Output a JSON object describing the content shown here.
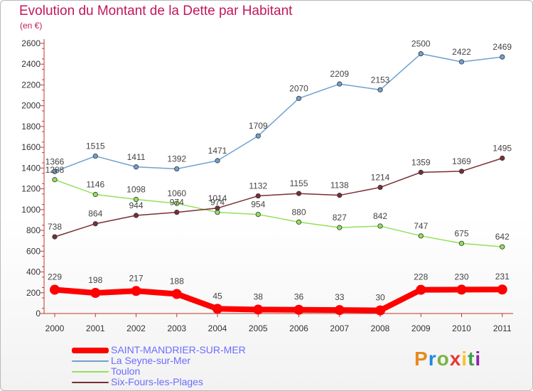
{
  "title": "Evolution du Montant de la Dette par Habitant",
  "subtitle": "(en €)",
  "logo_text": "Proxiti",
  "chart_data": {
    "type": "line",
    "title": "Evolution du Montant de la Dette par Habitant",
    "ylabel": "(en €)",
    "xlabel": "",
    "ylim": [
      0,
      2600
    ],
    "yticks": [
      0,
      200,
      400,
      600,
      800,
      1000,
      1200,
      1400,
      1600,
      1800,
      2000,
      2200,
      2400,
      2600
    ],
    "categories": [
      "2000",
      "2001",
      "2002",
      "2003",
      "2004",
      "2005",
      "2006",
      "2007",
      "2008",
      "2009",
      "2010",
      "2011"
    ],
    "grid": false,
    "legend_position": "bottom-left",
    "series": [
      {
        "name": "SAINT-MANDRIER-SUR-MER",
        "color": "#ff0000",
        "values": [
          229,
          198,
          217,
          188,
          45,
          38,
          36,
          33,
          30,
          228,
          230,
          231
        ]
      },
      {
        "name": "La Seyne-sur-Mer",
        "color": "#6fa1cf",
        "values": [
          1366,
          1515,
          1411,
          1392,
          1471,
          1709,
          2070,
          2209,
          2153,
          2500,
          2422,
          2469
        ]
      },
      {
        "name": "Toulon",
        "color": "#93e05a",
        "values": [
          1288,
          1146,
          1098,
          1060,
          974,
          954,
          880,
          827,
          842,
          747,
          675,
          642
        ]
      },
      {
        "name": "Six-Fours-les-Plages",
        "color": "#7a2e35",
        "values": [
          738,
          864,
          944,
          974,
          1014,
          1132,
          1155,
          1138,
          1214,
          1359,
          1369,
          1495
        ]
      }
    ]
  }
}
